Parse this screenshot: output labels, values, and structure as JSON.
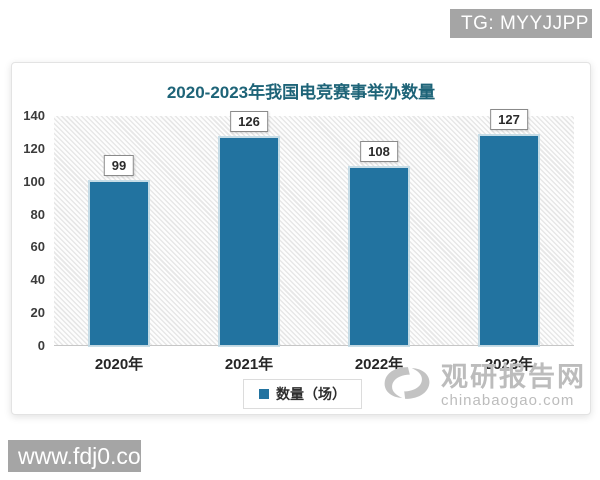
{
  "page": {
    "tg_badge": "TG: MYYJJPP",
    "bottom_badge": "www.fdj0.com"
  },
  "watermark": {
    "logo_icon": "swirl-logo",
    "site_name": "观研报告网",
    "site_url": "chinabaogao.com",
    "color": "#bcbcbc"
  },
  "chart_data": {
    "type": "bar",
    "title": "2020-2023年我国电竞赛事举办数量",
    "categories": [
      "2020年",
      "2021年",
      "2022年",
      "2023年"
    ],
    "values": [
      99,
      126,
      108,
      127
    ],
    "legend": [
      "数量（场）"
    ],
    "legend_position": "bottom",
    "xlabel": "",
    "ylabel": "",
    "ylim": [
      0,
      140
    ],
    "ytick_step": 20,
    "grid": false,
    "plot_background": "diagonal-hatch",
    "data_labels": true,
    "bar_color": "#2273a0",
    "title_color": "#1e6478",
    "badge_gray": "#a5a5a5"
  }
}
